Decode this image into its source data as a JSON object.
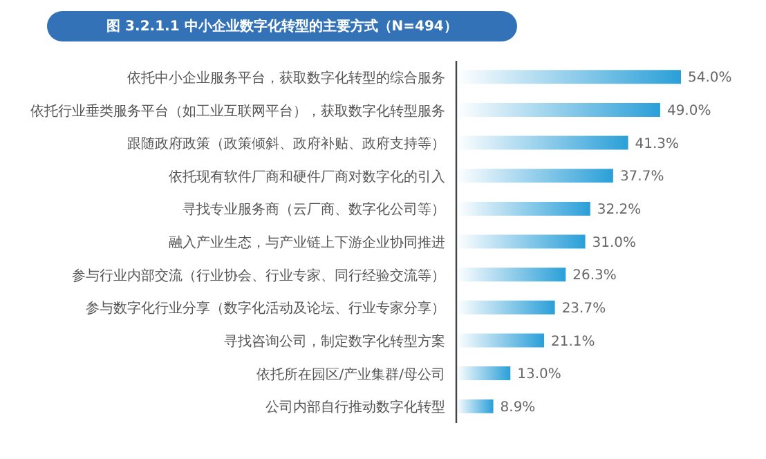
{
  "chart_data": {
    "type": "bar",
    "orientation": "horizontal",
    "title": "图 3.2.1.1 中小企业数字化转型的主要方式（N=494）",
    "categories": [
      "依托中小企业服务平台，获取数字化转型的综合服务",
      "依托行业垂类服务平台（如工业互联网平台），获取数字化转型服务",
      "跟随政府政策（政策倾斜、政府补贴、政府支持等）",
      "依托现有软件厂商和硬件厂商对数字化的引入",
      "寻找专业服务商（云厂商、数字化公司等）",
      "融入产业生态，与产业链上下游企业协同推进",
      "参与行业内部交流（行业协会、行业专家、同行经验交流等）",
      "参与数字化行业分享（数字化活动及论坛、行业专家分享）",
      "寻找咨询公司，制定数字化转型方案",
      "依托所在园区/产业集群/母公司",
      "公司内部自行推动数字化转型"
    ],
    "values": [
      54.0,
      49.0,
      41.3,
      37.7,
      32.2,
      31.0,
      26.3,
      23.7,
      21.1,
      13.0,
      8.9
    ],
    "value_labels": [
      "54.0%",
      "49.0%",
      "41.3%",
      "37.7%",
      "32.2%",
      "31.0%",
      "26.3%",
      "23.7%",
      "21.1%",
      "13.0%",
      "8.9%"
    ],
    "color": "#2a9fd8",
    "grid": false,
    "legend": false
  }
}
